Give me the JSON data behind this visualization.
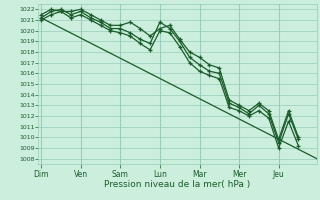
{
  "xlabel": "Pression niveau de la mer( hPa )",
  "background_color": "#cceedd",
  "grid_color": "#99ccbb",
  "line_color": "#1a5c2a",
  "ylim": [
    1007.5,
    1022.5
  ],
  "yticks": [
    1008,
    1009,
    1010,
    1011,
    1012,
    1013,
    1014,
    1015,
    1016,
    1017,
    1018,
    1019,
    1020,
    1021,
    1022
  ],
  "day_labels": [
    "Dim",
    "Ven",
    "Sam",
    "Lun",
    "Mar",
    "Mer",
    "Jeu"
  ],
  "day_positions": [
    0,
    28,
    56,
    84,
    112,
    140,
    168
  ],
  "xlim": [
    -2,
    195
  ],
  "trend_x": [
    0,
    195
  ],
  "trend_y": [
    1021.2,
    1008.0
  ],
  "s2_x": [
    0,
    7,
    14,
    21,
    28,
    35,
    42,
    49,
    56,
    63,
    70,
    77,
    84,
    91,
    98,
    105,
    112,
    119,
    126,
    133,
    140,
    147,
    154,
    161,
    168,
    175,
    182
  ],
  "s2_y": [
    1021.5,
    1022.0,
    1021.8,
    1021.8,
    1022.0,
    1021.5,
    1021.0,
    1020.5,
    1020.5,
    1020.8,
    1020.2,
    1019.5,
    1020.2,
    1020.5,
    1019.2,
    1018.0,
    1017.5,
    1016.8,
    1016.5,
    1013.5,
    1013.0,
    1012.5,
    1013.2,
    1012.5,
    1009.8,
    1012.5,
    1010.0
  ],
  "s3_x": [
    0,
    7,
    14,
    21,
    28,
    35,
    42,
    49,
    56,
    63,
    70,
    77,
    84,
    91,
    98,
    105,
    112,
    119,
    126,
    133,
    140,
    147,
    154,
    161,
    168,
    175,
    182
  ],
  "s3_y": [
    1021.2,
    1021.8,
    1022.0,
    1021.5,
    1021.8,
    1021.2,
    1020.8,
    1020.2,
    1020.2,
    1019.8,
    1019.2,
    1018.8,
    1020.8,
    1020.2,
    1019.0,
    1017.5,
    1016.8,
    1016.2,
    1016.0,
    1013.2,
    1012.8,
    1012.2,
    1013.0,
    1012.2,
    1009.5,
    1012.2,
    1009.8
  ],
  "s4_x": [
    0,
    7,
    14,
    21,
    28,
    35,
    42,
    49,
    56,
    63,
    70,
    77,
    84,
    91,
    98,
    105,
    112,
    119,
    126,
    133,
    140,
    147,
    154,
    161,
    168,
    175,
    182
  ],
  "s4_y": [
    1021.0,
    1021.5,
    1021.8,
    1021.2,
    1021.5,
    1021.0,
    1020.5,
    1020.0,
    1019.8,
    1019.5,
    1018.8,
    1018.2,
    1020.0,
    1019.8,
    1018.5,
    1017.0,
    1016.2,
    1015.8,
    1015.5,
    1012.8,
    1012.5,
    1012.0,
    1012.5,
    1011.8,
    1009.0,
    1011.5,
    1009.2
  ]
}
